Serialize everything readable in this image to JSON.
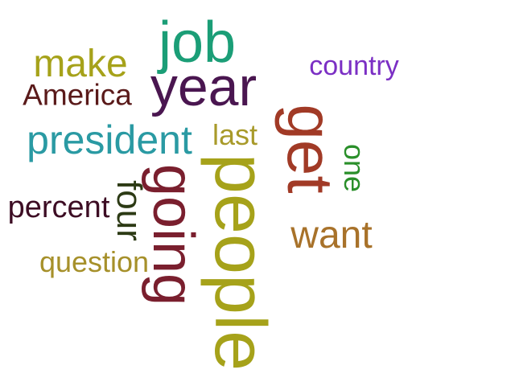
{
  "words": {
    "job": {
      "text": "job",
      "color": "#1b9e77"
    },
    "year": {
      "text": "year",
      "color": "#4a1650"
    },
    "make": {
      "text": "make",
      "color": "#a6a21a"
    },
    "country": {
      "text": "country",
      "color": "#7b2fc4"
    },
    "america": {
      "text": "America",
      "color": "#5a1a1a"
    },
    "president": {
      "text": "president",
      "color": "#2a9aa3"
    },
    "last": {
      "text": "last",
      "color": "#a89a2a"
    },
    "people": {
      "text": "people",
      "color": "#a6a21a"
    },
    "get": {
      "text": "get",
      "color": "#a13a26"
    },
    "one": {
      "text": "one",
      "color": "#2a8f2a"
    },
    "going": {
      "text": "going",
      "color": "#7a1f2e"
    },
    "four": {
      "text": "four",
      "color": "#2c3a14"
    },
    "percent": {
      "text": "percent",
      "color": "#3d0d24"
    },
    "want": {
      "text": "want",
      "color": "#a8722a"
    },
    "question": {
      "text": "question",
      "color": "#a6902a"
    }
  }
}
